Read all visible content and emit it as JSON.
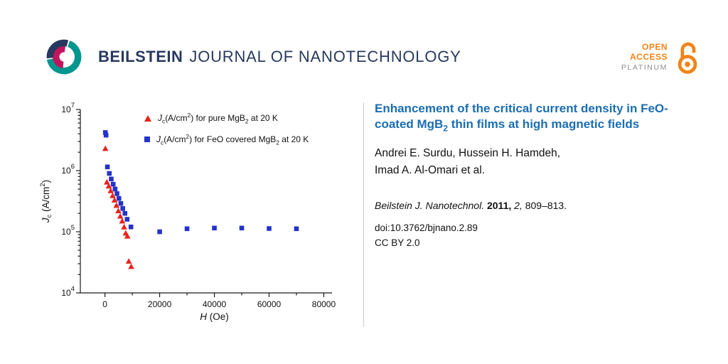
{
  "colors": {
    "navy": "#27395e",
    "teal": "#00958e",
    "magenta": "#c2155e",
    "orange": "#f08418",
    "gray": "#8d8d8d",
    "title_blue": "#1a6db3",
    "divider": "#c9c9c9"
  },
  "header": {
    "brand": "BEILSTEIN",
    "journal": "JOURNAL OF NANOTECHNOLOGY",
    "open_access": {
      "line1": "OPEN",
      "line2": "ACCESS",
      "line3": "PLATINUM"
    }
  },
  "article": {
    "title_segments": [
      {
        "t": "Enhancement of the critical current density in FeO-coated MgB"
      },
      {
        "t": "2",
        "s": "sub"
      },
      {
        "t": " thin films at high mag­netic fields"
      }
    ],
    "author_lines": [
      "Andrei E. Surdu, Hussein H. Hamdeh,",
      "Imad A. Al-Omari et al."
    ],
    "citation_segments": [
      {
        "t": "Beilstein J. Nanotechnol.",
        "i": 1
      },
      {
        "t": " "
      },
      {
        "t": "2011,",
        "b": 1
      },
      {
        "t": " "
      },
      {
        "t": "2,",
        "i": 1
      },
      {
        "t": " 809–813."
      }
    ],
    "doi": "doi:10.3762/bjnano.2.89",
    "license": "CC BY 2.0"
  },
  "chart_data": {
    "type": "scatter",
    "title": "",
    "xlabel_segments": [
      {
        "t": "H",
        "i": 1
      },
      {
        "t": " (Oe)"
      }
    ],
    "ylabel_segments": [
      {
        "t": "J",
        "i": 1
      },
      {
        "t": "c",
        "s": "sub"
      },
      {
        "t": " (A/cm"
      },
      {
        "t": "2",
        "s": "sup"
      },
      {
        "t": ")"
      }
    ],
    "xlim": [
      0,
      80000
    ],
    "xrange": [
      -9000,
      83000
    ],
    "x_major_ticks": [
      0,
      20000,
      40000,
      60000,
      80000
    ],
    "x_minor_step": 10000,
    "y_scale": "log",
    "ylim": [
      10000,
      10000000
    ],
    "ylog_decades": [
      4,
      5,
      6,
      7
    ],
    "grid": false,
    "legend_position": "inside-top",
    "series": [
      {
        "name_segments": [
          {
            "t": "J",
            "i": 1
          },
          {
            "t": "c",
            "s": "sub"
          },
          {
            "t": "(A/cm"
          },
          {
            "t": "2",
            "s": "sup"
          },
          {
            "t": ") for pure MgB"
          },
          {
            "t": "2",
            "s": "sub"
          },
          {
            "t": " at 20 K"
          }
        ],
        "marker": "triangle",
        "color": "#e8231d",
        "points": [
          [
            150,
            2300000
          ],
          [
            700,
            650000
          ],
          [
            1400,
            560000
          ],
          [
            2100,
            470000
          ],
          [
            2800,
            390000
          ],
          [
            3500,
            330000
          ],
          [
            4200,
            270000
          ],
          [
            4900,
            220000
          ],
          [
            5600,
            180000
          ],
          [
            6300,
            150000
          ],
          [
            7000,
            120000
          ],
          [
            7600,
            95000
          ],
          [
            8200,
            85000
          ],
          [
            8700,
            33000
          ],
          [
            9600,
            27000
          ]
        ]
      },
      {
        "name_segments": [
          {
            "t": "J",
            "i": 1
          },
          {
            "t": "c",
            "s": "sub"
          },
          {
            "t": "(A/cm"
          },
          {
            "t": "2",
            "s": "sup"
          },
          {
            "t": ") for FeO covered MgB"
          },
          {
            "t": "2",
            "s": "sub"
          },
          {
            "t": " at 20 K"
          }
        ],
        "marker": "square",
        "color": "#2433c8",
        "points": [
          [
            150,
            4200000
          ],
          [
            400,
            3800000
          ],
          [
            900,
            1150000
          ],
          [
            1600,
            900000
          ],
          [
            2300,
            730000
          ],
          [
            3000,
            600000
          ],
          [
            3700,
            500000
          ],
          [
            4400,
            420000
          ],
          [
            5100,
            350000
          ],
          [
            5800,
            290000
          ],
          [
            6500,
            240000
          ],
          [
            7300,
            200000
          ],
          [
            8100,
            160000
          ],
          [
            9500,
            120000
          ],
          [
            20000,
            100000
          ],
          [
            30000,
            112000
          ],
          [
            40000,
            115000
          ],
          [
            50000,
            115000
          ],
          [
            60000,
            113000
          ],
          [
            70000,
            112000
          ]
        ]
      }
    ]
  }
}
